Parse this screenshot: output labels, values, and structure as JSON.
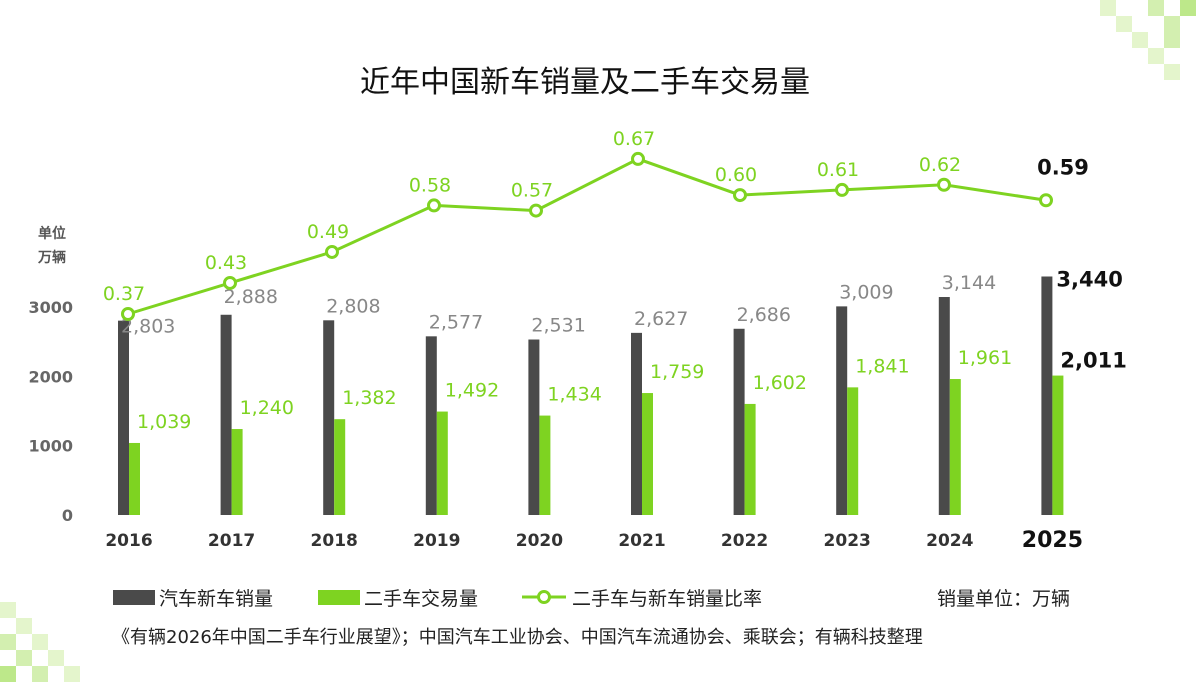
{
  "chart_data": {
    "type": "bar",
    "title": "近年中国新车销量及二手车交易量",
    "ylabel": "单位 万辆",
    "ylabel_lines": [
      "单位",
      "万辆"
    ],
    "yticks": [
      0,
      1000,
      2000,
      3000
    ],
    "ylim": [
      0,
      3000
    ],
    "categories": [
      "2016",
      "2017",
      "2018",
      "2019",
      "2020",
      "2021",
      "2022",
      "2023",
      "2024",
      "2025"
    ],
    "series": [
      {
        "name": "汽车新车销量",
        "type": "bar",
        "color": "#4a4a4a",
        "values": [
          2803,
          2888,
          2808,
          2577,
          2531,
          2627,
          2686,
          3009,
          3144,
          3440
        ],
        "labels": [
          "2,803",
          "2,888",
          "2,808",
          "2,577",
          "2,531",
          "2,627",
          "2,686",
          "3,009",
          "3,144",
          "3,440"
        ]
      },
      {
        "name": "二手车交易量",
        "type": "bar",
        "color": "#7ed321",
        "values": [
          1039,
          1240,
          1382,
          1492,
          1434,
          1759,
          1602,
          1841,
          1961,
          2011
        ],
        "labels": [
          "1,039",
          "1,240",
          "1,382",
          "1,492",
          "1,434",
          "1,759",
          "1,602",
          "1,841",
          "1,961",
          "2,011"
        ]
      },
      {
        "name": "二手车与新车销量比率",
        "type": "line",
        "color": "#7ed321",
        "values": [
          0.37,
          0.43,
          0.49,
          0.58,
          0.57,
          0.67,
          0.6,
          0.61,
          0.62,
          0.59
        ],
        "labels": [
          "0.37",
          "0.43",
          "0.49",
          "0.58",
          "0.57",
          "0.67",
          "0.60",
          "0.61",
          "0.62",
          "0.59"
        ]
      }
    ],
    "highlight_category": "2025",
    "legend_placement": "bottom",
    "grid": false,
    "unit_note": "销量单位：万辆",
    "source": "《有辆2026年中国二手车行业展望》；中国汽车工业协会、中国汽车流通协会、乘联会；有辆科技整理"
  }
}
